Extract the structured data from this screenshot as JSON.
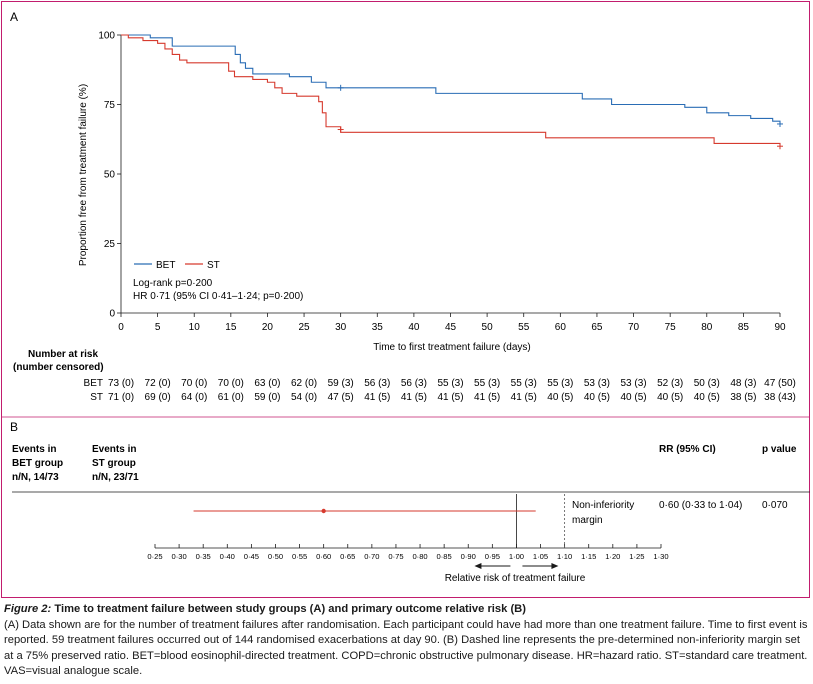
{
  "chart_data": [
    {
      "panel": "A",
      "type": "line",
      "step": true,
      "xlabel": "Time to first treatment failure (days)",
      "ylabel": "Proportion free from treatment failure (%)",
      "xlim": [
        0,
        90
      ],
      "ylim": [
        0,
        100
      ],
      "xticks": [
        0,
        5,
        10,
        15,
        20,
        25,
        30,
        35,
        40,
        45,
        50,
        55,
        60,
        65,
        70,
        75,
        80,
        85,
        90
      ],
      "yticks": [
        0,
        25,
        50,
        75,
        100
      ],
      "legend": {
        "placement": "bottom-left"
      },
      "annotations": [
        "Log-rank p=0·200",
        "HR 0·71 (95% CI 0·41–1·24; p=0·200)"
      ],
      "series": [
        {
          "name": "BET",
          "color": "#2a6db5",
          "x": [
            0,
            1,
            4,
            7,
            15,
            15.6,
            16.3,
            17,
            18,
            21,
            23,
            25,
            26,
            27,
            28,
            43,
            62,
            63,
            67,
            77,
            80,
            82,
            83,
            86,
            89,
            90
          ],
          "y": [
            100,
            100,
            99,
            96,
            96,
            93,
            90,
            88,
            86,
            86,
            85,
            85,
            83,
            83,
            81,
            79,
            79,
            77,
            75,
            74,
            72,
            72,
            71,
            70,
            69,
            68
          ],
          "censor_marks": [
            [
              30,
              81
            ],
            [
              90,
              68
            ]
          ]
        },
        {
          "name": "ST",
          "color": "#d63a2e",
          "x": [
            0,
            1,
            3,
            5,
            6,
            7,
            8,
            9,
            14,
            14.7,
            15.5,
            18,
            20,
            21,
            22,
            24,
            27,
            27.5,
            28,
            30,
            58,
            80,
            81,
            90
          ],
          "y": [
            100,
            99,
            98,
            97,
            95,
            93,
            91,
            90,
            90,
            87,
            85,
            84,
            83,
            81,
            79,
            78,
            76,
            72,
            67,
            65,
            63,
            63,
            61,
            60
          ],
          "censor_marks": [
            [
              30,
              66
            ],
            [
              90,
              60
            ]
          ]
        }
      ]
    },
    {
      "panel": "B",
      "type": "scatter",
      "forest": true,
      "xlabel": "Relative risk of treatment failure",
      "xlim": [
        0.25,
        1.3
      ],
      "xticks": [
        0.25,
        0.3,
        0.35,
        0.4,
        0.45,
        0.5,
        0.55,
        0.6,
        0.65,
        0.7,
        0.75,
        0.8,
        0.85,
        0.9,
        0.95,
        1.0,
        1.05,
        1.1,
        1.15,
        1.2,
        1.25,
        1.3
      ],
      "xtick_labels": [
        "0·25",
        "0·30",
        "0·35",
        "0·40",
        "0·45",
        "0·50",
        "0·55",
        "0·60",
        "0·65",
        "0·70",
        "0·75",
        "0·80",
        "0·85",
        "0·90",
        "0·95",
        "1·00",
        "1·05",
        "1·10",
        "1·15",
        "1·20",
        "1·25",
        "1·30"
      ],
      "reference_line": 1.0,
      "noninferiority_margin": 1.1,
      "noninferiority_label": [
        "Non-inferiority",
        "margin"
      ],
      "estimate": {
        "rr": 0.6,
        "ci": [
          0.33,
          1.04
        ],
        "color": "#d63a2e"
      }
    }
  ],
  "panelA": {
    "label": "A",
    "risk_title": [
      "Number at risk",
      "(number censored)"
    ],
    "risk_rows": [
      {
        "group": "BET",
        "values": [
          "73 (0)",
          "72 (0)",
          "70 (0)",
          "70 (0)",
          "63 (0)",
          "62 (0)",
          "59 (3)",
          "56 (3)",
          "56 (3)",
          "55 (3)",
          "55 (3)",
          "55 (3)",
          "55 (3)",
          "53 (3)",
          "53 (3)",
          "52 (3)",
          "50 (3)",
          "48 (3)",
          "47 (50)"
        ]
      },
      {
        "group": "ST",
        "values": [
          "71 (0)",
          "69 (0)",
          "64 (0)",
          "61 (0)",
          "59 (0)",
          "54 (0)",
          "47 (5)",
          "41 (5)",
          "41 (5)",
          "41 (5)",
          "41 (5)",
          "41 (5)",
          "40 (5)",
          "40 (5)",
          "40 (5)",
          "40 (5)",
          "40 (5)",
          "38 (5)",
          "38 (43)"
        ]
      }
    ]
  },
  "panelB": {
    "label": "B",
    "col_bet": [
      "Events in",
      "BET group",
      "n/N, 14/73"
    ],
    "col_st": [
      "Events in",
      "ST group",
      "n/N, 23/71"
    ],
    "col_rr": "RR (95% CI)",
    "col_p": "p value",
    "rr_text": "0·60 (0·33 to 1·04)",
    "p_text": "0·070"
  },
  "caption": {
    "title_italic": "Figure 2:",
    "title_bold": " Time to treatment failure between study groups (A) and primary outcome relative risk (B)",
    "body": "(A) Data shown are for the number of treatment failures after randomisation. Each participant could have had more than one treatment failure. Time to first event is reported. 59 treatment failures occurred out of 144 randomised exacerbations at day 90. (B) Dashed line represents the pre-determined non-inferiority margin set at a 75% preserved ratio. BET=blood eosinophil-directed treatment. COPD=chronic obstructive pulmonary disease. HR=hazard ratio. ST=standard care treatment. VAS=visual analogue scale."
  }
}
